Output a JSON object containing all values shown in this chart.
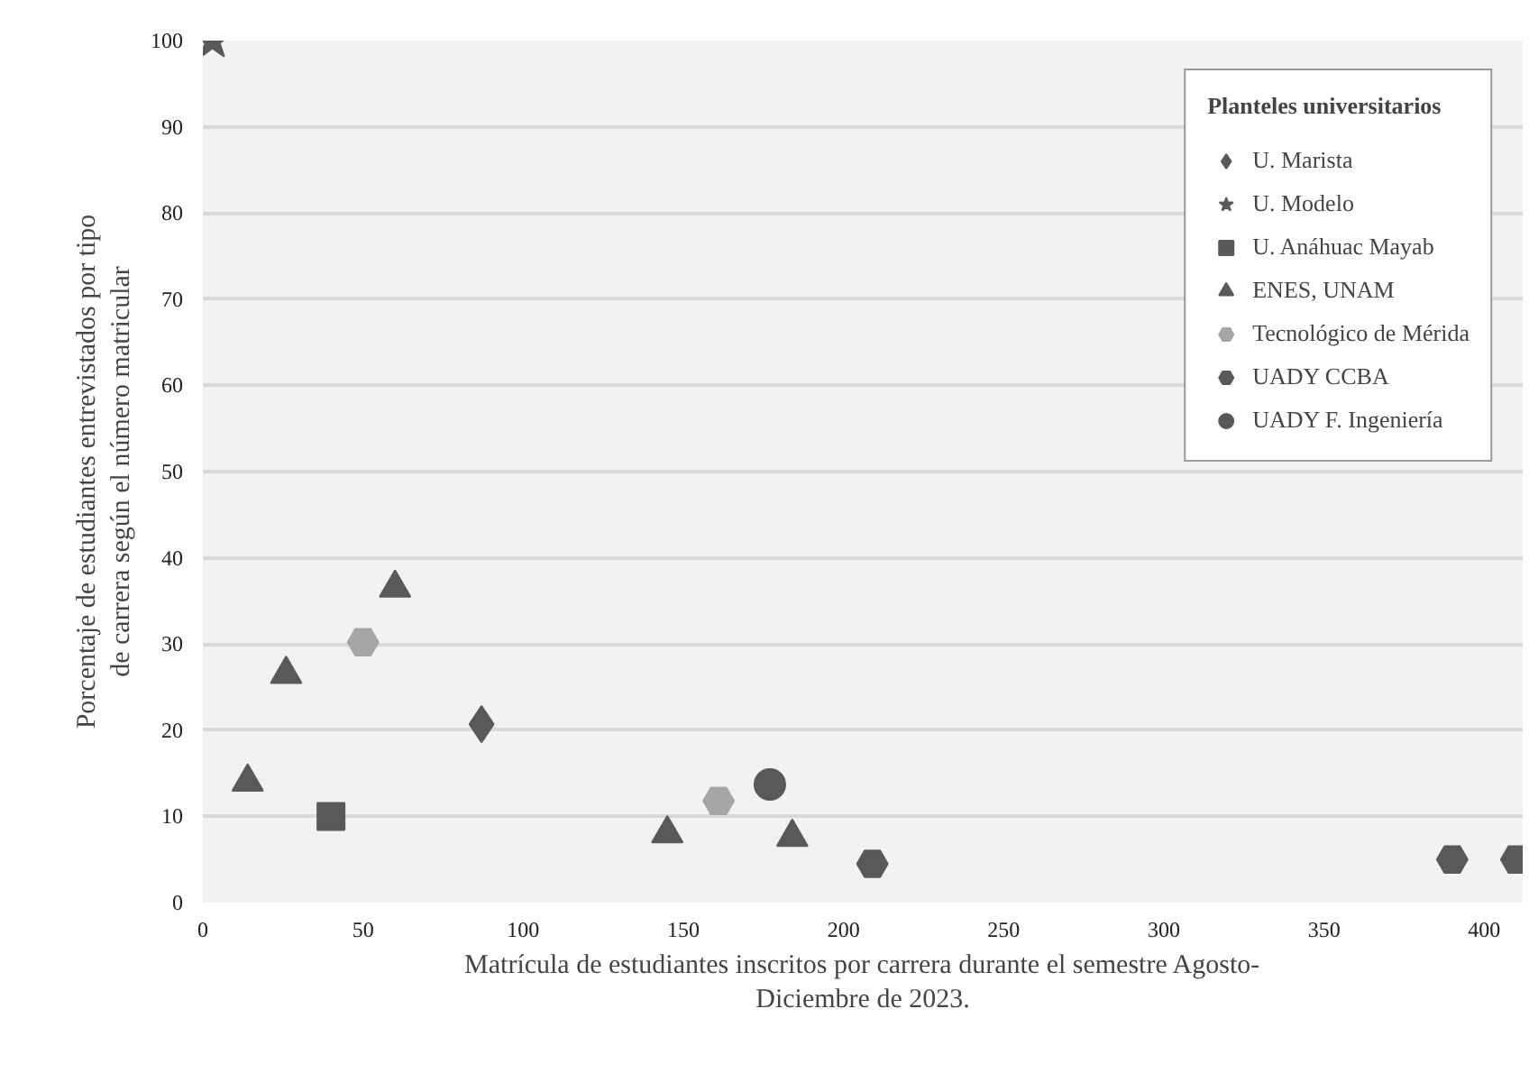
{
  "chart_data": {
    "type": "scatter",
    "xlabel": "Matrícula de estudiantes inscritos por carrera durante el semestre Agosto-Diciembre de 2023.",
    "ylabel": "Porcentaje de estudiantes entrevistados por tipo de carrera según el número matricular",
    "legend_title": "Planteles universitarios",
    "series": [
      {
        "name": "U. Marista",
        "color": "#595959",
        "marker": "diamond",
        "x": [
          87
        ],
        "values": [
          20.7
        ]
      },
      {
        "name": "U. Modelo",
        "color": "#595959",
        "marker": "star",
        "x": [
          3
        ],
        "values": [
          100
        ]
      },
      {
        "name": "U. Anáhuac Mayab",
        "color": "#595959",
        "marker": "square",
        "x": [
          40
        ],
        "values": [
          10
        ]
      },
      {
        "name": "ENES, UNAM",
        "color": "#595959",
        "marker": "triangle",
        "x": [
          14,
          26,
          60,
          145,
          184
        ],
        "values": [
          14,
          26.5,
          36.5,
          8,
          7.6
        ]
      },
      {
        "name": "Tecnológico de Mérida",
        "color": "#a6a6a6",
        "x": [
          50,
          161
        ],
        "values": [
          30.2,
          11.8
        ]
      },
      {
        "name": "UADY CCBA",
        "color": "#595959",
        "x": [
          209,
          390,
          410
        ],
        "values": [
          4.5,
          5,
          5
        ]
      },
      {
        "name": "UADY F. Ingeniería",
        "color": "#595959",
        "marker": "circle",
        "x": [
          177
        ],
        "values": [
          13.7
        ]
      }
    ],
    "xlim": [
      0,
      412
    ],
    "xticks": [
      0,
      50,
      100,
      150,
      200,
      250,
      300,
      350,
      400
    ],
    "ylim": [
      0,
      100
    ],
    "yticks": [
      0,
      10,
      20,
      30,
      40,
      50,
      60,
      70,
      80,
      90,
      100
    ],
    "grid": "y",
    "legend": "top right"
  }
}
